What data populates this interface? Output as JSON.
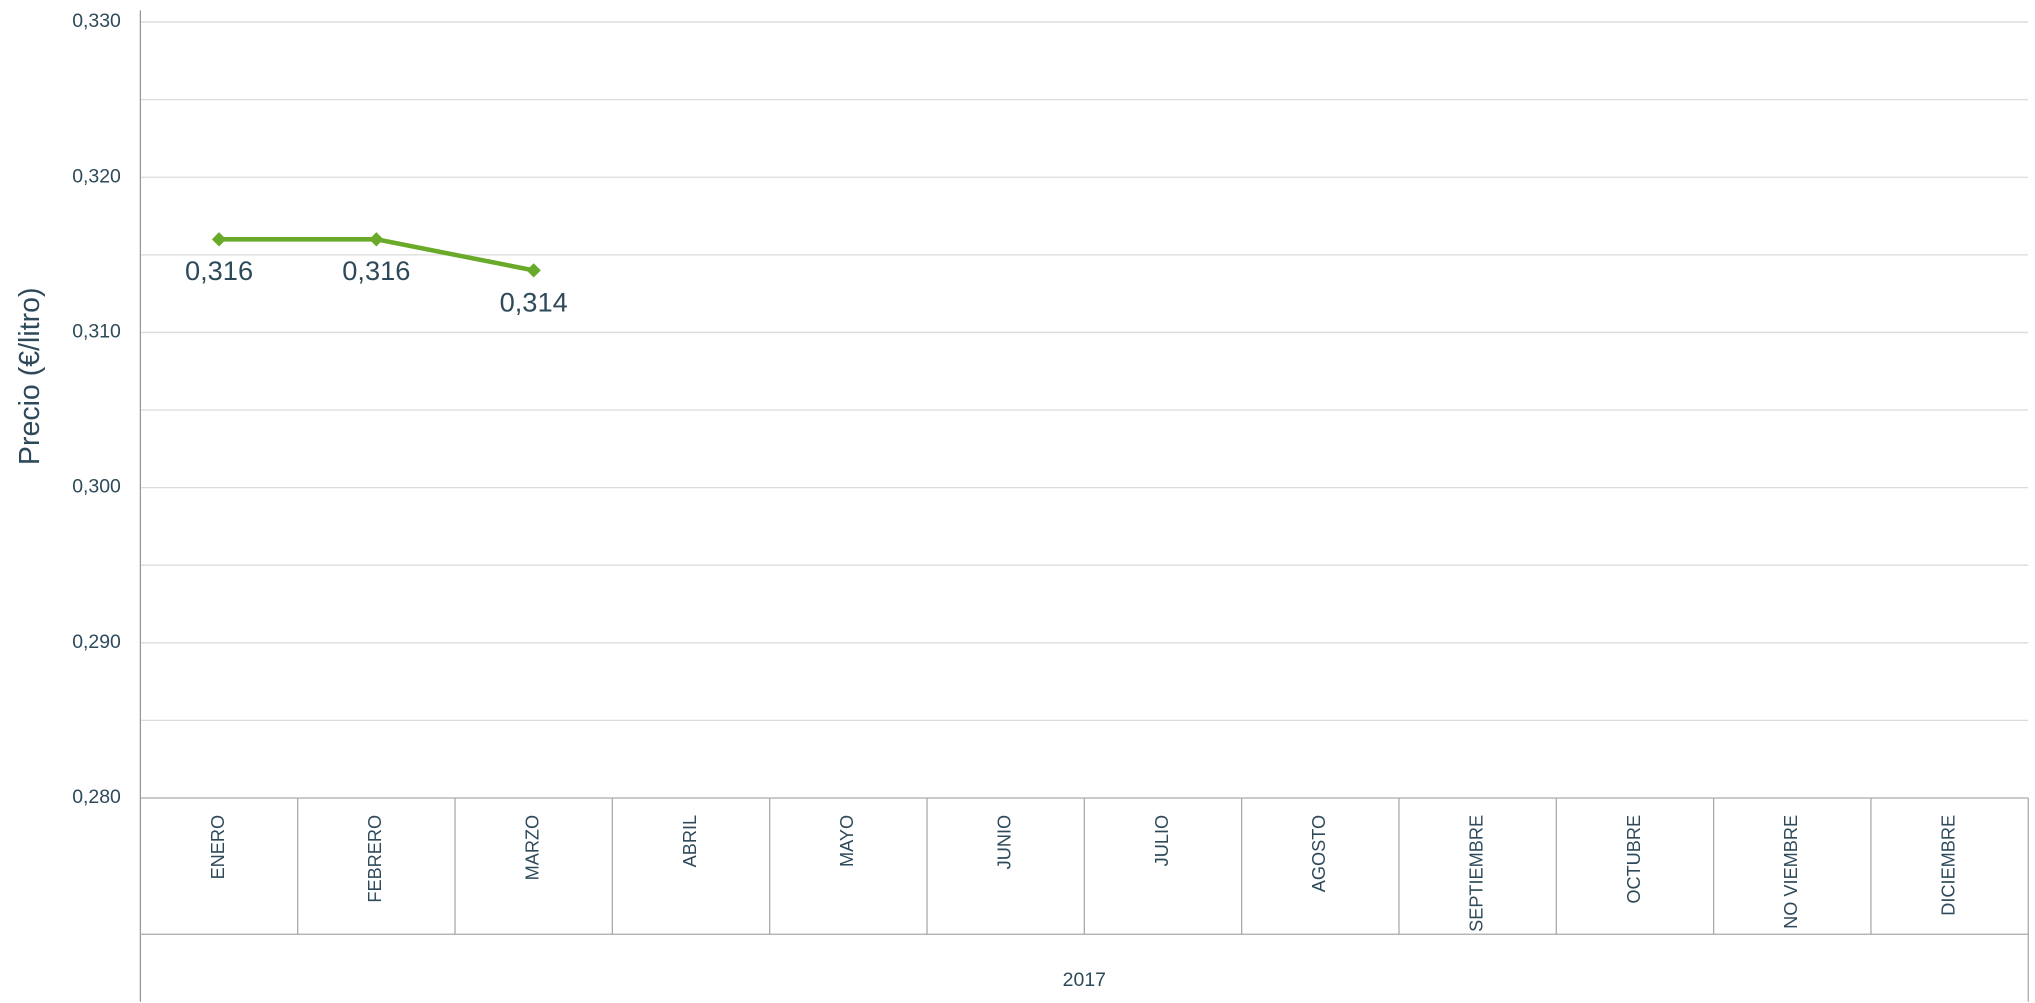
{
  "chart_data": {
    "type": "line",
    "y_label": "Precio (€/litro)",
    "group_label": "2017",
    "categories": [
      "ENERO",
      "FEBRERO",
      "MARZO",
      "ABRIL",
      "MAYO",
      "JUNIO",
      "JULIO",
      "AGOSTO",
      "SEPTIEMBRE",
      "OCTUBRE",
      "NO VIEMBRE",
      "DICIEMBRE"
    ],
    "series": [
      {
        "color": "#6aaa2a",
        "values": [
          0.316,
          0.316,
          0.314,
          null,
          null,
          null,
          null,
          null,
          null,
          null,
          null,
          null
        ],
        "value_labels": [
          "0,316",
          "0,316",
          "0,314",
          null,
          null,
          null,
          null,
          null,
          null,
          null,
          null,
          null
        ]
      }
    ],
    "ylim": [
      0.28,
      0.33
    ],
    "yticks": [
      {
        "value": 0.28,
        "label": "0,280"
      },
      {
        "value": 0.29,
        "label": "0,290"
      },
      {
        "value": 0.3,
        "label": "0,300"
      },
      {
        "value": 0.31,
        "label": "0,310"
      },
      {
        "value": 0.32,
        "label": "0,320"
      },
      {
        "value": 0.33,
        "label": "0,330"
      }
    ],
    "minor_yticks": [
      0.285,
      0.295,
      0.305,
      0.315,
      0.325
    ],
    "grid": true
  }
}
